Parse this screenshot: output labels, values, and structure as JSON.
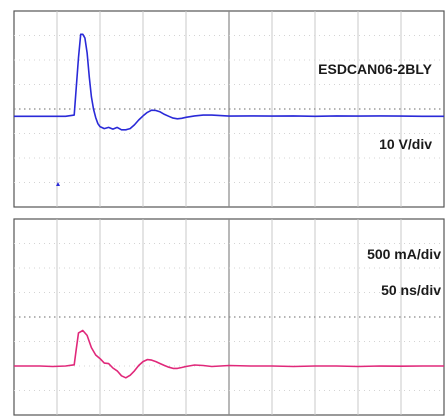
{
  "chart_data": [
    {
      "type": "line",
      "title": "",
      "annotations": {
        "device": "ESDCAN06-2BLY",
        "v_scale": "10 V/div"
      },
      "xlabel": "",
      "ylabel": "",
      "grid": true,
      "xlim": [
        0,
        10
      ],
      "ylim": [
        -4,
        4
      ],
      "series": [
        {
          "color": "#2a2ad8",
          "x": [
            0,
            0.3,
            0.6,
            0.9,
            1.2,
            1.4,
            1.5,
            1.55,
            1.6,
            1.65,
            1.7,
            1.75,
            1.8,
            1.85,
            1.9,
            1.95,
            2.0,
            2.1,
            2.2,
            2.3,
            2.4,
            2.5,
            2.6,
            2.7,
            2.8,
            2.9,
            3.0,
            3.1,
            3.2,
            3.3,
            3.4,
            3.5,
            3.6,
            3.7,
            3.8,
            3.9,
            4.0,
            4.2,
            4.4,
            4.6,
            4.8,
            5.0,
            5.5,
            6.0,
            6.5,
            7.0,
            7.5,
            8.0,
            8.5,
            9.0,
            9.5,
            10
          ],
          "y": [
            -0.3,
            -0.3,
            -0.3,
            -0.3,
            -0.3,
            -0.25,
            2.1,
            3.05,
            3.05,
            2.9,
            2.3,
            1.3,
            0.5,
            0.0,
            -0.35,
            -0.6,
            -0.72,
            -0.8,
            -0.75,
            -0.82,
            -0.75,
            -0.85,
            -0.85,
            -0.8,
            -0.65,
            -0.45,
            -0.28,
            -0.14,
            -0.05,
            -0.06,
            -0.12,
            -0.22,
            -0.3,
            -0.37,
            -0.4,
            -0.38,
            -0.34,
            -0.28,
            -0.25,
            -0.25,
            -0.27,
            -0.29,
            -0.28,
            -0.29,
            -0.28,
            -0.3,
            -0.28,
            -0.29,
            -0.28,
            -0.29,
            -0.3,
            -0.3
          ]
        }
      ]
    },
    {
      "type": "line",
      "title": "",
      "annotations": {
        "i_scale": "500 mA/div",
        "t_scale": "50 ns/div"
      },
      "xlabel": "",
      "ylabel": "",
      "grid": true,
      "xlim": [
        0,
        10
      ],
      "ylim": [
        -4,
        4
      ],
      "series": [
        {
          "color": "#e0287a",
          "x": [
            0,
            0.3,
            0.6,
            0.9,
            1.2,
            1.4,
            1.45,
            1.5,
            1.6,
            1.7,
            1.8,
            1.9,
            2.0,
            2.1,
            2.2,
            2.3,
            2.4,
            2.5,
            2.6,
            2.7,
            2.8,
            2.9,
            3.0,
            3.1,
            3.2,
            3.3,
            3.4,
            3.5,
            3.6,
            3.7,
            3.8,
            3.9,
            4.0,
            4.2,
            4.4,
            4.6,
            4.8,
            5.0,
            5.5,
            6.0,
            6.5,
            7.0,
            7.5,
            8.0,
            8.5,
            9.0,
            9.5,
            10
          ],
          "y": [
            -2.0,
            -2.0,
            -2.0,
            -2.02,
            -2.0,
            -1.95,
            -1.3,
            -0.65,
            -0.55,
            -0.75,
            -1.25,
            -1.55,
            -1.7,
            -1.88,
            -1.9,
            -2.08,
            -2.2,
            -2.4,
            -2.48,
            -2.38,
            -2.2,
            -1.98,
            -1.82,
            -1.74,
            -1.76,
            -1.82,
            -1.9,
            -1.98,
            -2.05,
            -2.1,
            -2.1,
            -2.06,
            -2.02,
            -1.96,
            -1.98,
            -2.02,
            -2.0,
            -1.98,
            -2.0,
            -2.0,
            -2.02,
            -2.0,
            -2.0,
            -2.02,
            -2.0,
            -2.01,
            -2.0,
            -2.0
          ]
        }
      ]
    }
  ]
}
